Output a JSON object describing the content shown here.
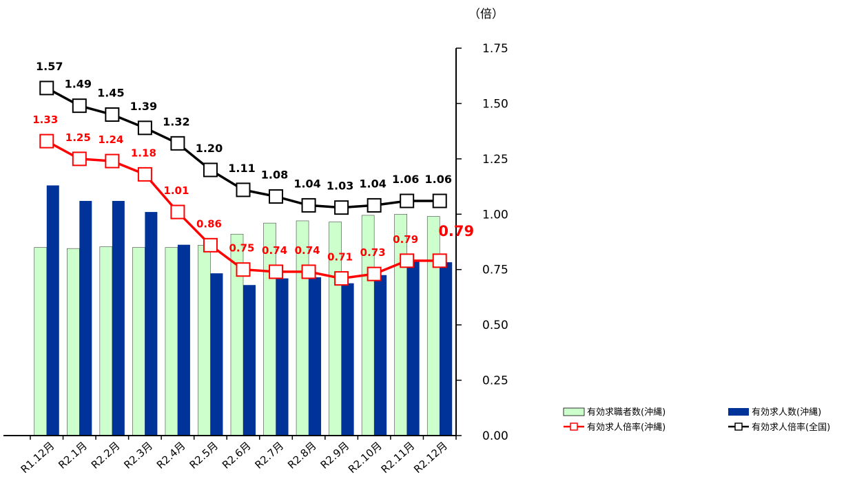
{
  "chart_data": {
    "type": "bar",
    "unit_label": "（倍）",
    "categories": [
      "R1.12月",
      "R2.1月",
      "R2.2月",
      "R2.3月",
      "R2.4月",
      "R2.5月",
      "R2.6月",
      "R2.7月",
      "R2.8月",
      "R2.9月",
      "R2.10月",
      "R2.11月",
      "R2.12月"
    ],
    "y_ticks": [
      "0.00",
      "0.25",
      "0.50",
      "0.75",
      "1.00",
      "1.25",
      "1.50",
      "1.75"
    ],
    "ylim": [
      0,
      1.75
    ],
    "series": [
      {
        "name": "有効求職者数(沖縄)",
        "kind": "bar",
        "color": "#ccffcc",
        "values": [
          0.85,
          0.845,
          0.853,
          0.85,
          0.85,
          0.86,
          0.91,
          0.96,
          0.97,
          0.965,
          0.995,
          1.0,
          0.99
        ]
      },
      {
        "name": "有効求人数(沖縄)",
        "kind": "bar",
        "color": "#003399",
        "values": [
          1.13,
          1.06,
          1.06,
          1.01,
          0.862,
          0.733,
          0.68,
          0.71,
          0.715,
          0.688,
          0.725,
          0.79,
          0.783
        ]
      },
      {
        "name": "有効求人倍率(沖縄)",
        "kind": "line",
        "color": "#ff0000",
        "values": [
          1.33,
          1.25,
          1.24,
          1.18,
          1.01,
          0.86,
          0.75,
          0.74,
          0.74,
          0.71,
          0.73,
          0.79,
          0.79
        ],
        "labels": [
          "1.33",
          "1.25",
          "1.24",
          "1.18",
          "1.01",
          "0.86",
          "0.75",
          "0.74",
          "0.74",
          "0.71",
          "0.73",
          "0.79",
          "0.79"
        ]
      },
      {
        "name": "有効求人倍率(全国)",
        "kind": "line",
        "color": "#000000",
        "values": [
          1.57,
          1.49,
          1.45,
          1.39,
          1.32,
          1.2,
          1.11,
          1.08,
          1.04,
          1.03,
          1.04,
          1.06,
          1.06
        ],
        "labels": [
          "1.57",
          "1.49",
          "1.45",
          "1.39",
          "1.32",
          "1.20",
          "1.11",
          "1.08",
          "1.04",
          "1.03",
          "1.04",
          "1.06",
          "1.06"
        ]
      }
    ],
    "legend_position": "bottom-right",
    "grid": false
  }
}
